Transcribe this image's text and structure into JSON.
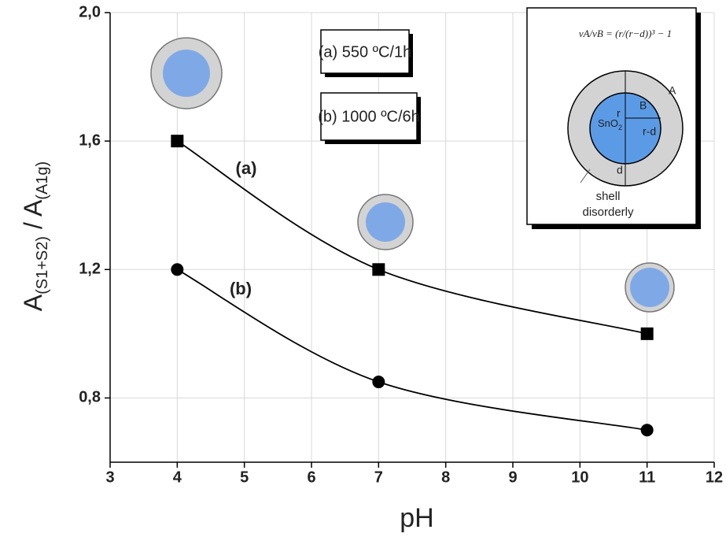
{
  "chart_data": {
    "type": "line",
    "x_label": "pH",
    "y_label": [
      "A",
      "(S1+S2)",
      " / A",
      "(A1g)"
    ],
    "xlim": [
      3,
      12
    ],
    "xticks": [
      3,
      4,
      5,
      6,
      7,
      8,
      9,
      10,
      11,
      12
    ],
    "ylim": [
      0.6,
      2.0
    ],
    "yticks": [
      {
        "value": 0.8,
        "label": "0,8"
      },
      {
        "value": 1.2,
        "label": "1,2"
      },
      {
        "value": 1.6,
        "label": "1,6"
      },
      {
        "value": 2.0,
        "label": "2,0"
      }
    ],
    "grid": true,
    "series": [
      {
        "name": "(a) 550 ºC/1h",
        "marker": "square",
        "color": "#000000",
        "x": [
          4,
          7,
          11
        ],
        "values": [
          1.6,
          1.2,
          1.0
        ]
      },
      {
        "name": "(b) 1000 ºC/6h",
        "marker": "circle",
        "color": "#000000",
        "x": [
          4,
          7,
          11
        ],
        "values": [
          1.2,
          0.85,
          0.7
        ]
      }
    ],
    "annotations": [
      "(a)",
      "(b)"
    ],
    "inset": {
      "formula": "vA/vB = (r/(r−d))³ − 1",
      "shell_label": "A",
      "core_label": "B",
      "radius_label": "r",
      "core_radius_label": "r-d",
      "thickness_label": "d",
      "material": [
        "SnO",
        "2"
      ],
      "caption": [
        "shell",
        "disorderly"
      ]
    }
  }
}
